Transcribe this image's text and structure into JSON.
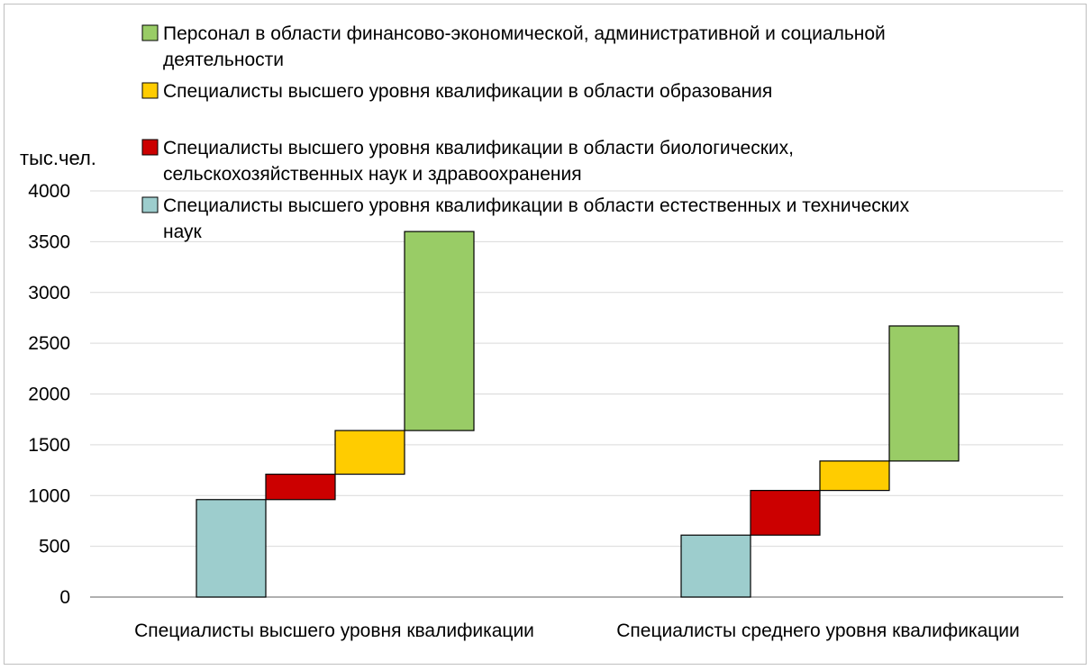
{
  "chart_data": {
    "type": "bar",
    "subtype": "waterfall-stacked",
    "ylabel": "тыс.чел.",
    "ylim": [
      0,
      4000
    ],
    "yticks": [
      0,
      500,
      1000,
      1500,
      2000,
      2500,
      3000,
      3500,
      4000
    ],
    "grid": true,
    "legend_position": "top",
    "categories": [
      "Специалисты высшего уровня квалификации",
      "Специалисты среднего уровня квалификации"
    ],
    "series": [
      {
        "name": "Специалисты высшего уровня квалификации в области естественных и технических наук",
        "color": "#9dcdcd",
        "values": [
          960,
          610
        ]
      },
      {
        "name": "Специалисты высшего уровня квалификации в области биологических, сельскохозяйственных наук и здравоохранения",
        "color": "#cc0000",
        "values": [
          250,
          440
        ]
      },
      {
        "name": "Специалисты высшего уровня квалификации в области образования",
        "color": "#ffcc00",
        "values": [
          430,
          290
        ]
      },
      {
        "name": "Персонал в области финансово-экономической, административной и социальной деятельности",
        "color": "#99cc66",
        "values": [
          1960,
          1330
        ]
      }
    ]
  }
}
